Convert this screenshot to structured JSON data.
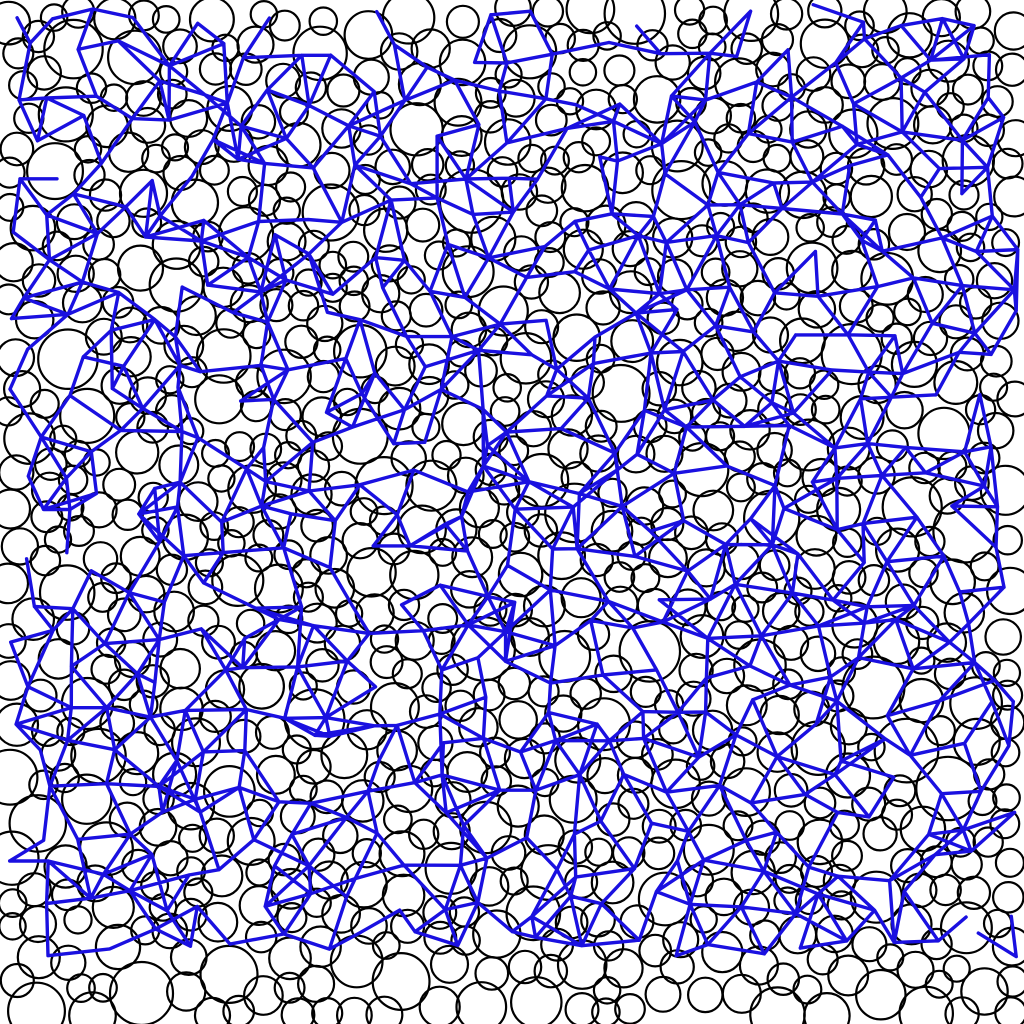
{
  "figure": {
    "kind": "random disk packing with overlaid contact network",
    "background_color": "#ffffff",
    "disk_outline_color": "#000000",
    "network_color": "#1a10e0"
  }
}
